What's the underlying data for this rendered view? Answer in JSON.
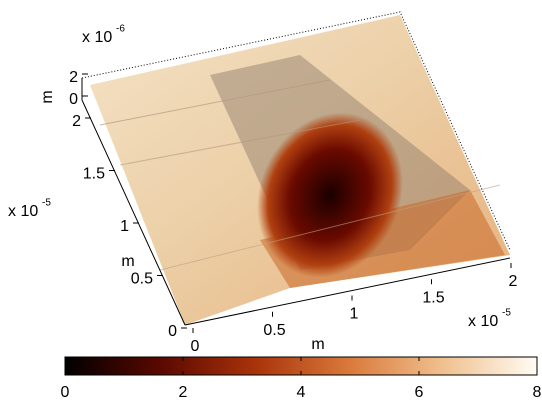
{
  "chart_data": {
    "type": "surface",
    "x_axis": {
      "label": "m",
      "multiplier": "x 10",
      "exponent": "-5",
      "xlim": [
        0,
        2
      ],
      "xticks": [
        0,
        0.5,
        1,
        1.5,
        2
      ]
    },
    "y_axis": {
      "label": "m",
      "multiplier": "x 10",
      "exponent": "-5",
      "ylim": [
        0,
        2
      ],
      "yticks": [
        0,
        0.5,
        1,
        1.5,
        2
      ]
    },
    "z_axis": {
      "label": "m",
      "multiplier": "x 10",
      "exponent": "-6",
      "zlim": [
        0,
        2
      ],
      "zticks": [
        0,
        2
      ]
    },
    "colorbar": {
      "clim": [
        0,
        8
      ],
      "ticks": [
        0,
        2,
        4,
        6,
        8
      ],
      "colors": [
        "#000000",
        "#5a0800",
        "#a8320a",
        "#d9793a",
        "#f0c08e",
        "#fffcf4"
      ]
    }
  }
}
